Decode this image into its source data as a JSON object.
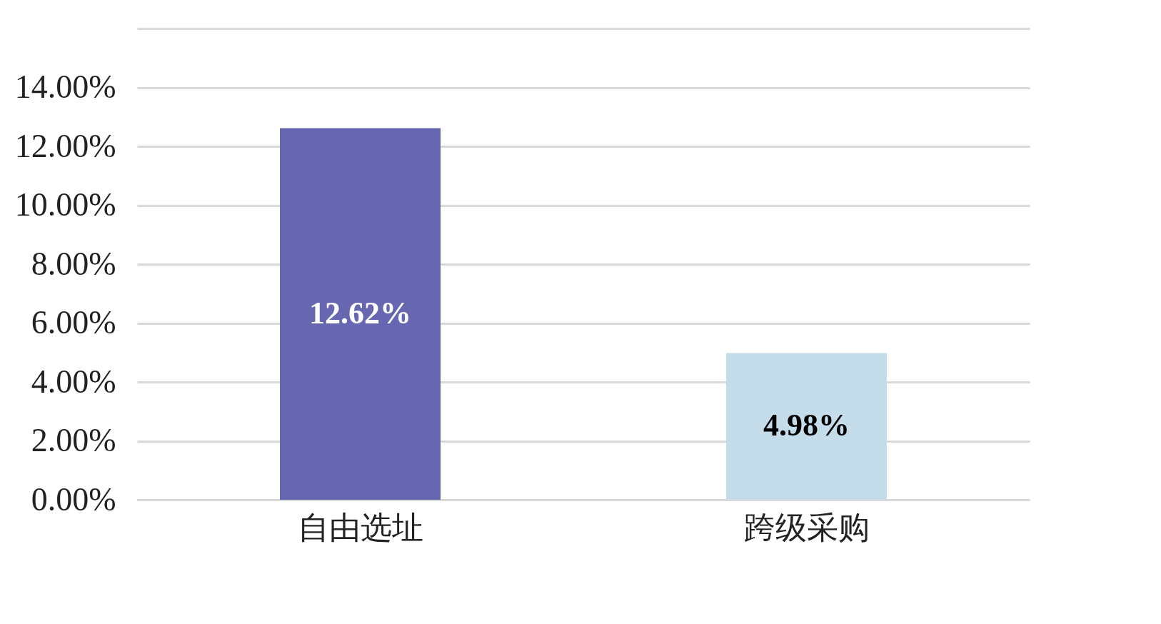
{
  "chart_data": {
    "type": "bar",
    "categories": [
      "自由选址",
      "跨级采购"
    ],
    "values": [
      12.62,
      4.98
    ],
    "colors": [
      "#6667b0",
      "#c5dcea"
    ],
    "value_labels": [
      "12.62%",
      "4.98%"
    ],
    "ylim": [
      0,
      16
    ],
    "yticks": [
      {
        "value": 0,
        "label": "0.00%"
      },
      {
        "value": 2,
        "label": "2.00%"
      },
      {
        "value": 4,
        "label": "4.00%"
      },
      {
        "value": 6,
        "label": "6.00%"
      },
      {
        "value": 8,
        "label": "8.00%"
      },
      {
        "value": 10,
        "label": "10.00%"
      },
      {
        "value": 12,
        "label": "12.00%"
      },
      {
        "value": 14,
        "label": "14.00%"
      },
      {
        "value": 16,
        "label": null
      }
    ],
    "grid": "y"
  }
}
